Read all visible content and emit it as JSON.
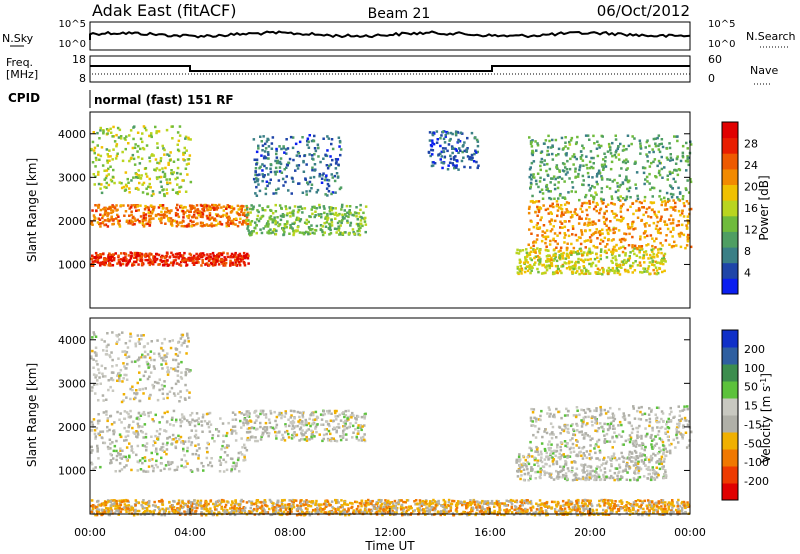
{
  "header": {
    "station": "Adak East (fitACF)",
    "beam": "Beam 21",
    "date": "06/Oct/2012"
  },
  "noise_panel": {
    "left_label": "N.Sky",
    "right_label": "N.Search",
    "ticks": [
      "10^5",
      "10^0"
    ],
    "right_ticks": [
      "10^5",
      "10^0"
    ]
  },
  "freq_panel": {
    "left_label_line1": "Freq.",
    "left_label_line2": "[MHz]",
    "left_ticks": [
      "18",
      "8"
    ],
    "right_label": "Nave",
    "right_ticks": [
      "60",
      "0"
    ]
  },
  "cpid": {
    "label": "CPID",
    "value": "normal (fast) 151 RF"
  },
  "colors": {
    "power": [
      "#0a1ef0",
      "#1f45a8",
      "#3a7f86",
      "#4f9e63",
      "#6fbb3c",
      "#b9d51f",
      "#f0c000",
      "#f28a00",
      "#ee5a00",
      "#e81e00",
      "#e00000"
    ],
    "velocity": [
      "#1030c8",
      "#2f5fa0",
      "#3c8d4e",
      "#5cc23c",
      "#c8c8c0",
      "#b0b0a8",
      "#f0b000",
      "#f07800",
      "#ee3a00",
      "#e00000"
    ]
  },
  "chart_data": [
    {
      "type": "heatmap",
      "name": "power",
      "ylabel": "Slant Range [km]",
      "yticks": [
        "1000",
        "2000",
        "3000",
        "4000"
      ],
      "ylim": [
        0,
        4500
      ],
      "xlim": [
        "00:00",
        "24:00"
      ],
      "colorbar_label": "Power [dB]",
      "colorbar_ticks": [
        "4",
        "8",
        "12",
        "16",
        "20",
        "24",
        "28"
      ],
      "colorbar_range": [
        0,
        30
      ],
      "features": [
        {
          "t0": 0,
          "t1": 6.3,
          "r0": 1000,
          "r1": 1300,
          "value": 26
        },
        {
          "t0": 0,
          "t1": 6.3,
          "r0": 1900,
          "r1": 2400,
          "value": 22
        },
        {
          "t0": 0,
          "t1": 4,
          "r0": 2600,
          "r1": 4200,
          "value": 14
        },
        {
          "t0": 6.2,
          "t1": 11,
          "r0": 1700,
          "r1": 2400,
          "value": 12
        },
        {
          "t0": 6.5,
          "t1": 10,
          "r0": 2600,
          "r1": 4000,
          "value": 6
        },
        {
          "t0": 13.5,
          "t1": 15.5,
          "r0": 3200,
          "r1": 4100,
          "value": 5
        },
        {
          "t0": 17,
          "t1": 23,
          "r0": 800,
          "r1": 1400,
          "value": 16
        },
        {
          "t0": 17.5,
          "t1": 24,
          "r0": 1400,
          "r1": 2500,
          "value": 20
        },
        {
          "t0": 17.5,
          "t1": 24,
          "r0": 2500,
          "r1": 4000,
          "value": 10
        }
      ]
    },
    {
      "type": "heatmap",
      "name": "velocity",
      "ylabel": "Slant Range [km]",
      "yticks": [
        "1000",
        "2000",
        "3000",
        "4000"
      ],
      "ylim": [
        0,
        4500
      ],
      "xlim": [
        "00:00",
        "24:00"
      ],
      "xlabel": "Time UT",
      "xticks": [
        "00:00",
        "04:00",
        "08:00",
        "12:00",
        "16:00",
        "20:00",
        "00:00"
      ],
      "colorbar_label": "Velocity [m s",
      "colorbar_label_sup": "-1",
      "colorbar_label_end": "]",
      "colorbar_ticks": [
        "200",
        "100",
        "50",
        "15",
        "-15",
        "-50",
        "-100",
        "-200"
      ],
      "colorbar_range": [
        -250,
        250
      ],
      "features": [
        {
          "t0": 0,
          "t1": 6.3,
          "r0": 1000,
          "r1": 2400,
          "value": 0
        },
        {
          "t0": 0,
          "t1": 4,
          "r0": 2600,
          "r1": 4200,
          "value": 0
        },
        {
          "t0": 6.2,
          "t1": 11,
          "r0": 1700,
          "r1": 2400,
          "value": 0
        },
        {
          "t0": 17,
          "t1": 23,
          "r0": 800,
          "r1": 1400,
          "value": 0
        },
        {
          "t0": 17.5,
          "t1": 24,
          "r0": 1400,
          "r1": 2500,
          "value": 0
        },
        {
          "t0": 0,
          "t1": 24,
          "r0": 0,
          "r1": 350,
          "value": -70
        }
      ]
    }
  ]
}
